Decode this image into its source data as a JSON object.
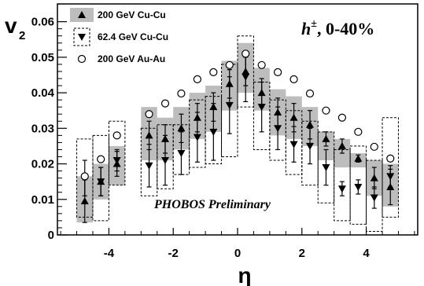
{
  "chart_data": {
    "type": "scatter",
    "ylabel": "v",
    "ylabel_sub": "2",
    "xlabel": "η",
    "annotation_main": "h",
    "annotation_sup": "±",
    "annotation_tail": ", 0-40%",
    "watermark": "PHOBOS Preliminary",
    "xlim": [
      -5.6,
      5.6
    ],
    "ylim": [
      0,
      0.065
    ],
    "x_ticks": [
      -4,
      -2,
      0,
      2,
      4
    ],
    "x_tick_labels": [
      "-4",
      "-2",
      "0",
      "2",
      "4"
    ],
    "y_ticks": [
      0,
      0.01,
      0.02,
      0.03,
      0.04,
      0.05,
      0.06
    ],
    "y_tick_labels": [
      "0",
      "0.01",
      "0.02",
      "0.03",
      "0.04",
      "0.05",
      "0.06"
    ],
    "legend_position": "top-left",
    "series": [
      {
        "name": "200 GeV Cu-Cu",
        "marker": "triangle-up",
        "color": "#000000",
        "band_color": "#bdbdbd",
        "points": [
          {
            "x": -4.75,
            "y": 0.0095,
            "err": 0.006,
            "lo": 0.0035,
            "hi": 0.0165
          },
          {
            "x": -4.25,
            "y": 0.015,
            "err": 0.004,
            "lo": 0.01,
            "hi": 0.02
          },
          {
            "x": -3.75,
            "y": 0.02,
            "err": 0.0035,
            "lo": 0.014,
            "hi": 0.025
          },
          {
            "x": -2.75,
            "y": 0.028,
            "err": 0.004,
            "lo": 0.021,
            "hi": 0.036
          },
          {
            "x": -2.25,
            "y": 0.027,
            "err": 0.004,
            "lo": 0.021,
            "hi": 0.033
          },
          {
            "x": -1.75,
            "y": 0.03,
            "err": 0.004,
            "lo": 0.024,
            "hi": 0.036
          },
          {
            "x": -1.25,
            "y": 0.033,
            "err": 0.004,
            "lo": 0.027,
            "hi": 0.04
          },
          {
            "x": -0.75,
            "y": 0.036,
            "err": 0.004,
            "lo": 0.029,
            "hi": 0.042
          },
          {
            "x": -0.25,
            "y": 0.0425,
            "err": 0.004,
            "lo": 0.035,
            "hi": 0.049
          },
          {
            "x": 0.25,
            "y": 0.046,
            "err": 0.004,
            "lo": 0.04,
            "hi": 0.054
          },
          {
            "x": 0.75,
            "y": 0.04,
            "err": 0.004,
            "lo": 0.035,
            "hi": 0.047
          },
          {
            "x": 1.25,
            "y": 0.0345,
            "err": 0.004,
            "lo": 0.028,
            "hi": 0.041
          },
          {
            "x": 1.75,
            "y": 0.033,
            "err": 0.004,
            "lo": 0.027,
            "hi": 0.039
          },
          {
            "x": 2.25,
            "y": 0.031,
            "err": 0.004,
            "lo": 0.025,
            "hi": 0.036
          },
          {
            "x": 2.75,
            "y": 0.027,
            "err": 0.002,
            "lo": 0.021,
            "hi": 0.029
          },
          {
            "x": 3.25,
            "y": 0.025,
            "err": 0.002,
            "lo": 0.019,
            "hi": 0.027
          },
          {
            "x": 3.75,
            "y": 0.0215,
            "err": 0.001,
            "lo": 0.019,
            "hi": 0.023
          },
          {
            "x": 4.25,
            "y": 0.016,
            "err": 0.003,
            "lo": 0.011,
            "hi": 0.021
          },
          {
            "x": 4.75,
            "y": 0.0135,
            "err": 0.005,
            "lo": 0.008,
            "hi": 0.02
          }
        ]
      },
      {
        "name": "62.4 GeV Cu-Cu",
        "marker": "triangle-down",
        "color": "#000000",
        "box_style": "dashed",
        "points": [
          {
            "x": -4.75,
            "y": 0.016,
            "err": 0.005,
            "lo": 0.005,
            "hi": 0.027
          },
          {
            "x": -4.25,
            "y": 0.015,
            "err": 0.004,
            "lo": 0.004,
            "hi": 0.028
          },
          {
            "x": -3.75,
            "y": 0.021,
            "err": 0.003,
            "lo": 0.014,
            "hi": 0.032
          },
          {
            "x": -2.75,
            "y": 0.0195,
            "err": 0.006,
            "lo": 0.011,
            "hi": 0.03
          },
          {
            "x": -2.25,
            "y": 0.021,
            "err": 0.007,
            "lo": 0.013,
            "hi": 0.031
          },
          {
            "x": -1.75,
            "y": 0.023,
            "err": 0.006,
            "lo": 0.017,
            "hi": 0.031
          },
          {
            "x": -1.25,
            "y": 0.0275,
            "err": 0.007,
            "lo": 0.019,
            "hi": 0.038
          },
          {
            "x": -0.75,
            "y": 0.029,
            "err": 0.008,
            "lo": 0.02,
            "hi": 0.039
          },
          {
            "x": -0.25,
            "y": 0.0365,
            "err": 0.008,
            "lo": 0.022,
            "hi": 0.048
          },
          {
            "x": 0.25,
            "y": 0.0445,
            "err": 0.007,
            "lo": 0.036,
            "hi": 0.056
          },
          {
            "x": 0.75,
            "y": 0.036,
            "err": 0.007,
            "lo": 0.024,
            "hi": 0.043
          },
          {
            "x": 1.25,
            "y": 0.03,
            "err": 0.006,
            "lo": 0.021,
            "hi": 0.038
          },
          {
            "x": 1.75,
            "y": 0.0255,
            "err": 0.005,
            "lo": 0.017,
            "hi": 0.035
          },
          {
            "x": 2.25,
            "y": 0.025,
            "err": 0.005,
            "lo": 0.014,
            "hi": 0.032
          },
          {
            "x": 2.75,
            "y": 0.019,
            "err": 0.005,
            "lo": 0.009,
            "hi": 0.029
          },
          {
            "x": 3.25,
            "y": 0.013,
            "err": 0.002,
            "lo": 0.004,
            "hi": 0.024
          },
          {
            "x": 3.75,
            "y": 0.0135,
            "err": 0.002,
            "lo": 0.003,
            "hi": 0.025
          },
          {
            "x": 4.25,
            "y": 0.0105,
            "err": 0.003,
            "lo": 0.001,
            "hi": 0.021
          },
          {
            "x": 4.75,
            "y": 0.0165,
            "err": 0.003,
            "lo": 0.005,
            "hi": 0.033
          }
        ]
      },
      {
        "name": "200 GeV Au-Au",
        "marker": "circle-open",
        "color": "#000000",
        "points": [
          {
            "x": -4.75,
            "y": 0.0165
          },
          {
            "x": -4.25,
            "y": 0.0213
          },
          {
            "x": -3.75,
            "y": 0.028
          },
          {
            "x": -2.75,
            "y": 0.034
          },
          {
            "x": -2.25,
            "y": 0.037
          },
          {
            "x": -1.75,
            "y": 0.0398
          },
          {
            "x": -1.25,
            "y": 0.0438
          },
          {
            "x": -0.75,
            "y": 0.0458
          },
          {
            "x": -0.25,
            "y": 0.0478
          },
          {
            "x": 0.25,
            "y": 0.051
          },
          {
            "x": 0.75,
            "y": 0.0478
          },
          {
            "x": 1.25,
            "y": 0.0458
          },
          {
            "x": 1.75,
            "y": 0.0438
          },
          {
            "x": 2.25,
            "y": 0.0398
          },
          {
            "x": 2.75,
            "y": 0.035
          },
          {
            "x": 3.25,
            "y": 0.033
          },
          {
            "x": 3.75,
            "y": 0.029
          },
          {
            "x": 4.25,
            "y": 0.0248
          },
          {
            "x": 4.75,
            "y": 0.0215
          }
        ]
      }
    ]
  }
}
